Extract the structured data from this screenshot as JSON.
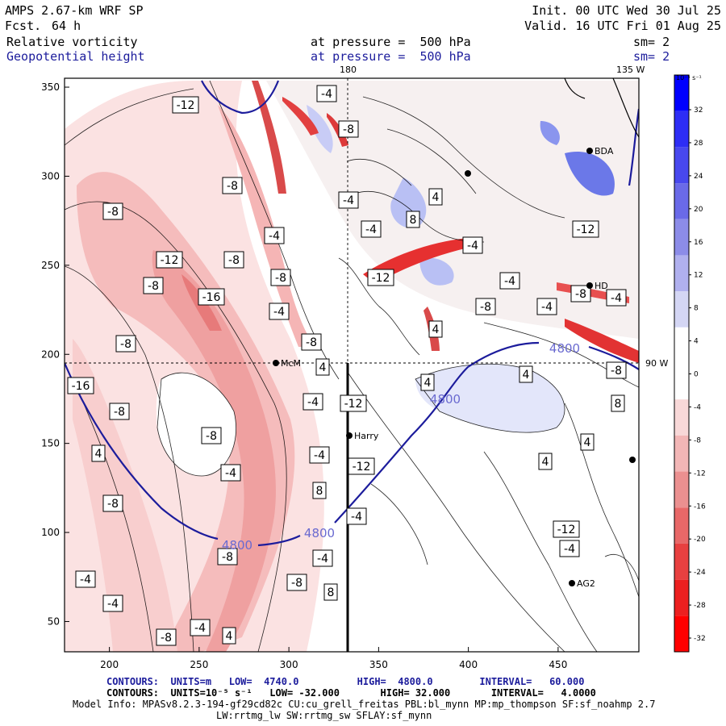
{
  "header": {
    "model": "AMPS 2.67-km WRF SP",
    "fcst_label": "Fcst.",
    "fcst_value": "64 h",
    "init": "Init. 00 UTC Wed 30 Jul 25",
    "valid": "Valid. 16 UTC Fri 01 Aug 25",
    "field1": "Relative vorticity",
    "field1_level": "at pressure =  500 hPa",
    "field1_sm": "sm= 2",
    "field2": "Geopotential height",
    "field2_level": "at pressure =  500 hPa",
    "field2_sm": "sm= 2"
  },
  "map": {
    "meridian_labels": [
      "180",
      "135 W",
      "90 W"
    ],
    "stations": [
      "McM",
      "Harry",
      "AG2",
      "BDA",
      "HD"
    ],
    "contour_label_height": "4800",
    "colors": {
      "blue_contour": "#1c1c9c",
      "pos_vort": "#0000ff",
      "neg_vort": "#ff0000"
    }
  },
  "chart_data": {
    "type": "heatmap",
    "x_ticks": [
      "200",
      "250",
      "300",
      "350",
      "400",
      "450"
    ],
    "y_ticks": [
      "50",
      "100",
      "150",
      "200",
      "250",
      "300",
      "350"
    ],
    "xlim": [
      175,
      495
    ],
    "ylim": [
      33,
      355
    ],
    "colorbar": {
      "unit": "10⁻⁵ s⁻¹",
      "labels": [
        "32",
        "28",
        "24",
        "20",
        "16",
        "12",
        "8",
        "4",
        "0",
        "-4",
        "-8",
        "-12",
        "-16",
        "-20",
        "-24",
        "-28",
        "-32"
      ]
    },
    "vorticity_labels": [
      "-12",
      "-4",
      "-8",
      "-8",
      "-8",
      "-4",
      "-8",
      "-12",
      "-16",
      "-8",
      "-8",
      "-4",
      "-4",
      "-4",
      "-8",
      "-8",
      "4",
      "8",
      "-4",
      "-12",
      "-8",
      "-4",
      "4",
      "-8",
      "-4",
      "-12",
      "-8",
      "-4",
      "4",
      "-16",
      "-8",
      "-4",
      "-12",
      "-4",
      "-8",
      "-12",
      "-4",
      "4",
      "8",
      "-8",
      "-4",
      "-8",
      "-4",
      "-4",
      "-8",
      "-4",
      "-4",
      "-8",
      "4",
      "8",
      "4",
      "4",
      "8",
      "4",
      "4",
      "-12",
      "-4"
    ],
    "height_contours": [
      4740.0,
      4800.0
    ],
    "height_label": "4800"
  },
  "footer": {
    "line1": "CONTOURS:  UNITS=m   LOW=  4740.0          HIGH=  4800.0        INTERVAL=   60.000",
    "line2": "CONTOURS:  UNITS=10⁻⁵ s⁻¹   LOW= -32.000       HIGH= 32.000       INTERVAL=   4.0000",
    "line3": "Model Info: MPASv8.2.3-194-gf29cd82c CU:cu_grell_freitas PBL:bl_mynn MP:mp_thompson SF:sf_noahmp 2.7",
    "line4": "LW:rrtmg_lw SW:rrtmg_sw SFLAY:sf_mynn"
  }
}
